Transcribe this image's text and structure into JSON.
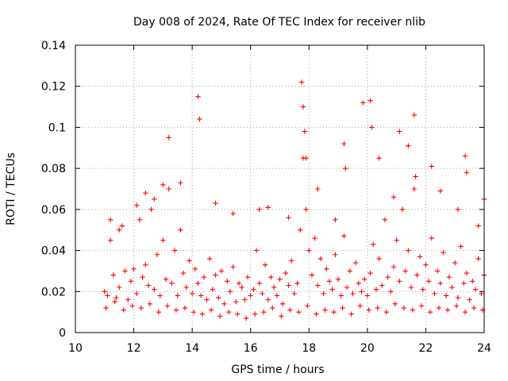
{
  "chart_data": {
    "type": "scatter",
    "title": "Day 008 of 2024, Rate Of TEC Index for receiver nlib",
    "xlabel": "GPS time / hours",
    "ylabel": "ROTI / TECUs",
    "xlim": [
      10,
      24
    ],
    "ylim": [
      0,
      0.14
    ],
    "xticks": [
      "10",
      "12",
      "14",
      "16",
      "18",
      "20",
      "22",
      "24"
    ],
    "yticks": [
      "0",
      "0.02",
      "0.04",
      "0.06",
      "0.08",
      "0.1",
      "0.12",
      "0.14"
    ],
    "grid": true,
    "marker": "+",
    "series": [
      {
        "name": "ROTI",
        "color": "#ff0000",
        "x": [
          11.0,
          11.1,
          11.2,
          11.3,
          11.4,
          11.5,
          11.6,
          11.7,
          11.8,
          11.9,
          12.0,
          12.1,
          12.2,
          12.3,
          12.4,
          12.5,
          12.6,
          12.7,
          12.8,
          12.9,
          13.0,
          13.1,
          13.2,
          13.3,
          13.4,
          13.5,
          13.6,
          13.7,
          13.8,
          13.9,
          14.0,
          14.1,
          14.2,
          14.3,
          14.4,
          14.5,
          14.6,
          14.7,
          14.8,
          14.9,
          15.0,
          15.1,
          15.2,
          15.3,
          15.4,
          15.5,
          15.6,
          15.7,
          15.8,
          15.9,
          16.0,
          16.1,
          16.2,
          16.3,
          16.4,
          16.5,
          16.6,
          16.7,
          16.8,
          16.9,
          17.0,
          17.1,
          17.2,
          17.3,
          17.4,
          17.5,
          17.6,
          17.7,
          17.8,
          17.9,
          18.0,
          18.1,
          18.2,
          18.3,
          18.4,
          18.5,
          18.6,
          18.7,
          18.8,
          18.9,
          19.0,
          19.1,
          19.2,
          19.3,
          19.4,
          19.5,
          19.6,
          19.7,
          19.8,
          19.9,
          20.0,
          20.1,
          20.2,
          20.3,
          20.4,
          20.5,
          20.6,
          20.7,
          20.8,
          20.9,
          21.0,
          21.1,
          21.2,
          21.3,
          21.4,
          21.5,
          21.6,
          21.7,
          21.8,
          21.9,
          22.0,
          22.1,
          22.2,
          22.3,
          22.4,
          22.5,
          22.6,
          22.7,
          22.8,
          22.9,
          23.0,
          23.1,
          23.2,
          23.3,
          23.4,
          23.5,
          23.6,
          23.7,
          23.8,
          23.9,
          24.0,
          11.05,
          11.35,
          11.65,
          11.95,
          12.25,
          12.55,
          12.85,
          13.15,
          13.45,
          13.75,
          14.05,
          14.35,
          14.65,
          14.95,
          15.25,
          15.55,
          15.85,
          16.15,
          16.45,
          16.75,
          17.05,
          17.35,
          17.65,
          17.95,
          18.25,
          18.55,
          18.85,
          19.15,
          19.45,
          19.75,
          20.05,
          20.35,
          20.65,
          20.95,
          21.25,
          21.55,
          21.85,
          22.15,
          22.45,
          22.75,
          23.05,
          23.35,
          23.65,
          23.95,
          11.2,
          11.5,
          12.1,
          12.4,
          12.7,
          13.0,
          13.2,
          13.6,
          14.2,
          14.25,
          14.8,
          15.4,
          16.3,
          16.6,
          17.3,
          17.75,
          17.8,
          17.85,
          17.9,
          18.3,
          18.9,
          19.2,
          19.25,
          19.85,
          20.1,
          20.15,
          20.4,
          20.9,
          21.1,
          21.4,
          21.6,
          21.65,
          22.2,
          22.5,
          23.1,
          23.35,
          23.4,
          23.8,
          24.0
        ],
        "y": [
          0.02,
          0.018,
          0.045,
          0.028,
          0.017,
          0.022,
          0.052,
          0.03,
          0.016,
          0.025,
          0.031,
          0.019,
          0.055,
          0.027,
          0.033,
          0.023,
          0.06,
          0.021,
          0.038,
          0.018,
          0.045,
          0.026,
          0.07,
          0.024,
          0.04,
          0.018,
          0.05,
          0.029,
          0.022,
          0.035,
          0.019,
          0.031,
          0.024,
          0.018,
          0.027,
          0.016,
          0.036,
          0.021,
          0.028,
          0.017,
          0.03,
          0.014,
          0.025,
          0.02,
          0.032,
          0.015,
          0.024,
          0.022,
          0.016,
          0.027,
          0.018,
          0.021,
          0.04,
          0.024,
          0.019,
          0.033,
          0.016,
          0.027,
          0.022,
          0.018,
          0.026,
          0.014,
          0.029,
          0.023,
          0.035,
          0.019,
          0.024,
          0.05,
          0.085,
          0.06,
          0.04,
          0.028,
          0.046,
          0.023,
          0.036,
          0.019,
          0.031,
          0.025,
          0.021,
          0.038,
          0.026,
          0.018,
          0.047,
          0.022,
          0.03,
          0.019,
          0.034,
          0.024,
          0.02,
          0.026,
          0.018,
          0.029,
          0.043,
          0.021,
          0.036,
          0.023,
          0.055,
          0.027,
          0.02,
          0.032,
          0.045,
          0.025,
          0.06,
          0.03,
          0.04,
          0.022,
          0.07,
          0.028,
          0.037,
          0.021,
          0.033,
          0.025,
          0.046,
          0.019,
          0.03,
          0.024,
          0.039,
          0.018,
          0.027,
          0.022,
          0.034,
          0.017,
          0.042,
          0.024,
          0.029,
          0.016,
          0.025,
          0.021,
          0.036,
          0.019,
          0.028,
          0.012,
          0.015,
          0.011,
          0.013,
          0.012,
          0.014,
          0.01,
          0.013,
          0.011,
          0.012,
          0.01,
          0.009,
          0.011,
          0.008,
          0.01,
          0.009,
          0.007,
          0.009,
          0.01,
          0.012,
          0.008,
          0.011,
          0.01,
          0.013,
          0.009,
          0.011,
          0.01,
          0.012,
          0.009,
          0.013,
          0.011,
          0.012,
          0.01,
          0.014,
          0.012,
          0.011,
          0.013,
          0.01,
          0.012,
          0.011,
          0.013,
          0.01,
          0.012,
          0.011,
          0.055,
          0.05,
          0.062,
          0.068,
          0.065,
          0.072,
          0.095,
          0.073,
          0.115,
          0.104,
          0.063,
          0.058,
          0.06,
          0.061,
          0.056,
          0.122,
          0.11,
          0.098,
          0.085,
          0.07,
          0.055,
          0.092,
          0.08,
          0.112,
          0.113,
          0.1,
          0.085,
          0.066,
          0.098,
          0.091,
          0.106,
          0.076,
          0.081,
          0.069,
          0.06,
          0.086,
          0.078,
          0.052,
          0.065
        ]
      }
    ]
  }
}
